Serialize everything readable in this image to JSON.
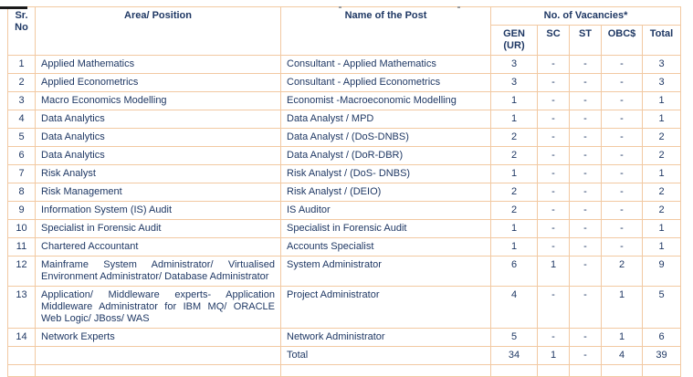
{
  "page": {
    "background": "#ffffff",
    "text_color": "#1F3864",
    "border_color": "#F2C9A2",
    "top_fragment_note": "cropped remnant of heading text above table"
  },
  "table": {
    "headers": {
      "sr_no": "Sr. No",
      "area_position": "Area/ Position",
      "name_of_post": "Name of the Post",
      "vacancies_group": "No. of Vacancies*",
      "sub": [
        "GEN (UR)",
        "SC",
        "ST",
        "OBC$",
        "Total"
      ]
    },
    "rows": [
      {
        "sr": "1",
        "area": "Applied Mathematics",
        "post": "Consultant - Applied Mathematics",
        "gen": "3",
        "sc": "-",
        "st": "-",
        "obc": "-",
        "total": "3"
      },
      {
        "sr": "2",
        "area": "Applied Econometrics",
        "post": "Consultant - Applied Econometrics",
        "gen": "3",
        "sc": "-",
        "st": "-",
        "obc": "-",
        "total": "3"
      },
      {
        "sr": "3",
        "area": "Macro Economics Modelling",
        "post": "Economist -Macroeconomic Modelling",
        "gen": "1",
        "sc": "-",
        "st": "-",
        "obc": "-",
        "total": "1"
      },
      {
        "sr": "4",
        "area": "Data Analytics",
        "post": "Data Analyst / MPD",
        "gen": "1",
        "sc": "-",
        "st": "-",
        "obc": "-",
        "total": "1"
      },
      {
        "sr": "5",
        "area": "Data Analytics",
        "post": "Data Analyst / (DoS-DNBS)",
        "gen": "2",
        "sc": "-",
        "st": "-",
        "obc": "-",
        "total": "2"
      },
      {
        "sr": "6",
        "area": "Data Analytics",
        "post": "Data Analyst / (DoR-DBR)",
        "gen": "2",
        "sc": "-",
        "st": "-",
        "obc": "-",
        "total": "2"
      },
      {
        "sr": "7",
        "area": "Risk Analyst",
        "post": "Risk Analyst / (DoS- DNBS)",
        "gen": "1",
        "sc": "-",
        "st": "-",
        "obc": "-",
        "total": "1"
      },
      {
        "sr": "8",
        "area": "Risk Management",
        "post": "Risk Analyst / (DEIO)",
        "gen": "2",
        "sc": "-",
        "st": "-",
        "obc": "-",
        "total": "2"
      },
      {
        "sr": "9",
        "area": "Information System (IS) Audit",
        "post": "IS Auditor",
        "gen": "2",
        "sc": "-",
        "st": "-",
        "obc": "-",
        "total": "2"
      },
      {
        "sr": "10",
        "area": "Specialist in Forensic Audit",
        "post": "Specialist in Forensic Audit",
        "gen": "1",
        "sc": "-",
        "st": "-",
        "obc": "-",
        "total": "1"
      },
      {
        "sr": "11",
        "area": "Chartered Accountant",
        "post": "Accounts Specialist",
        "gen": "1",
        "sc": "-",
        "st": "-",
        "obc": "-",
        "total": "1"
      },
      {
        "sr": "12",
        "area": "Mainframe System Administrator/ Virtualised Environment Administrator/ Database Administrator",
        "post": "System Administrator",
        "gen": "6",
        "sc": "1",
        "st": "-",
        "obc": "2",
        "total": "9"
      },
      {
        "sr": "13",
        "area": "Application/ Middleware experts- Application Middleware Administrator for IBM MQ/ ORACLE Web Logic/ JBoss/ WAS",
        "post": "Project Administrator",
        "gen": "4",
        "sc": "-",
        "st": "-",
        "obc": "1",
        "total": "5"
      },
      {
        "sr": "14",
        "area": "Network Experts",
        "post": "Network Administrator",
        "gen": "5",
        "sc": "-",
        "st": "-",
        "obc": "1",
        "total": "6"
      }
    ],
    "total_row": {
      "sr": "",
      "area": "",
      "label": "Total",
      "gen": "34",
      "sc": "1",
      "st": "-",
      "obc": "4",
      "total": "39"
    }
  }
}
